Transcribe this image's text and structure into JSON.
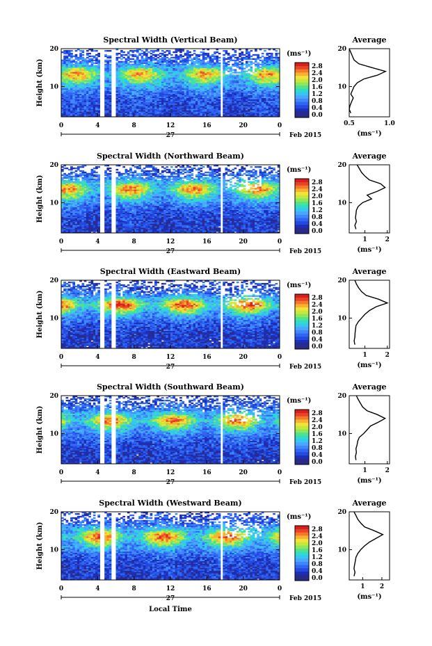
{
  "colormap": [
    "#ffffff",
    "#2a2a8a",
    "#1c2fb8",
    "#2349e0",
    "#2f67f2",
    "#3f86ff",
    "#4aa6ff",
    "#35c6f2",
    "#2fdcc8",
    "#52e28c",
    "#8ee65a",
    "#c6e83c",
    "#f2e23a",
    "#f8b232",
    "#f47a2a",
    "#e84328",
    "#d81e1e"
  ],
  "common": {
    "date_label": "Feb 2015",
    "day_label": "27",
    "time_ticks": [
      "0",
      "4",
      "8",
      "12",
      "16",
      "20",
      "0"
    ],
    "height_label": "Height (km)",
    "height_ticks": [
      "20",
      "10"
    ],
    "unit_label": "(ms⁻¹)",
    "colorbar_ticks": [
      "2.8",
      "2.4",
      "2.0",
      "1.6",
      "1.2",
      "0.8",
      "0.4",
      "0.0"
    ],
    "average_title": "Average",
    "avg_unit_label": "(ms⁻¹)",
    "xaxis_label": "Local Time"
  },
  "chart_data": [
    {
      "type": "heatmap",
      "title": "Spectral Width (Vertical Beam)",
      "x_range_hours": [
        0,
        24
      ],
      "y_range_km": [
        2,
        20
      ],
      "colorbar_range": [
        0.0,
        3.0
      ],
      "gaps_hours": [
        [
          4.3,
          4.7
        ],
        [
          5.4,
          6.0
        ],
        [
          17.4,
          17.7
        ]
      ],
      "profile": [
        0.55,
        0.55,
        0.6,
        0.6,
        0.62,
        0.7,
        0.8,
        0.95,
        1.15,
        1.45,
        1.7,
        2.0,
        2.3,
        1.9,
        1.4,
        1.0,
        0.8,
        0.65,
        0.6,
        0.55
      ],
      "avg_xrange": [
        0.5,
        1.0
      ],
      "avg_xticks": [
        "0.5",
        "1.0"
      ],
      "avg_profile_km": [
        3,
        4,
        5,
        6,
        7,
        8,
        9,
        10,
        11,
        12,
        13,
        14,
        15,
        16,
        17,
        18,
        19,
        20
      ],
      "avg_profile_ms": [
        0.52,
        0.5,
        0.51,
        0.53,
        0.55,
        0.52,
        0.54,
        0.56,
        0.6,
        0.68,
        0.85,
        0.95,
        0.78,
        0.62,
        0.56,
        0.54,
        0.52,
        0.5
      ]
    },
    {
      "type": "heatmap",
      "title": "Spectral Width (Northward Beam)",
      "x_range_hours": [
        0,
        24
      ],
      "y_range_km": [
        2,
        20
      ],
      "colorbar_range": [
        0.0,
        3.0
      ],
      "gaps_hours": [
        [
          4.3,
          4.7
        ],
        [
          5.4,
          6.0
        ],
        [
          17.4,
          17.7
        ]
      ],
      "profile": [
        0.45,
        0.45,
        0.5,
        0.5,
        0.55,
        0.6,
        0.7,
        0.85,
        1.0,
        1.3,
        1.55,
        1.9,
        2.3,
        2.2,
        1.7,
        1.2,
        0.9,
        0.7,
        0.6,
        0.55
      ],
      "avg_xrange": [
        0.3,
        2.1
      ],
      "avg_xticks": [
        "1",
        "2"
      ],
      "avg_profile_km": [
        3,
        4,
        5,
        6,
        7,
        8,
        9,
        10,
        11,
        12,
        13,
        14,
        15,
        16,
        17,
        18,
        19,
        20
      ],
      "avg_profile_ms": [
        0.6,
        0.55,
        0.62,
        0.58,
        0.6,
        0.62,
        0.7,
        0.9,
        1.3,
        1.1,
        1.55,
        1.9,
        1.7,
        1.2,
        1.0,
        0.85,
        0.75,
        0.65
      ]
    },
    {
      "type": "heatmap",
      "title": "Spectral Width (Eastward Beam)",
      "x_range_hours": [
        0,
        24
      ],
      "y_range_km": [
        2,
        20
      ],
      "colorbar_range": [
        0.0,
        3.0
      ],
      "gaps_hours": [
        [
          4.3,
          4.7
        ],
        [
          5.4,
          6.0
        ],
        [
          17.4,
          17.7
        ]
      ],
      "profile": [
        0.4,
        0.45,
        0.45,
        0.5,
        0.5,
        0.55,
        0.65,
        0.75,
        0.95,
        1.25,
        1.6,
        2.1,
        2.6,
        2.3,
        1.6,
        1.1,
        0.8,
        0.65,
        0.55,
        0.5
      ],
      "avg_xrange": [
        0.3,
        2.1
      ],
      "avg_xticks": [
        "1",
        "2"
      ],
      "avg_profile_km": [
        3,
        4,
        5,
        6,
        7,
        8,
        9,
        10,
        11,
        12,
        13,
        14,
        15,
        16,
        17,
        18,
        19,
        20
      ],
      "avg_profile_ms": [
        0.55,
        0.52,
        0.55,
        0.56,
        0.58,
        0.6,
        0.7,
        0.85,
        1.0,
        1.2,
        1.5,
        2.0,
        1.6,
        1.05,
        0.85,
        0.72,
        0.62,
        0.55
      ]
    },
    {
      "type": "heatmap",
      "title": "Spectral Width (Southward Beam)",
      "x_range_hours": [
        0,
        24
      ],
      "y_range_km": [
        2,
        20
      ],
      "colorbar_range": [
        0.0,
        3.0
      ],
      "gaps_hours": [
        [
          4.3,
          4.7
        ],
        [
          5.4,
          6.0
        ],
        [
          17.4,
          17.7
        ]
      ],
      "profile": [
        0.45,
        0.45,
        0.5,
        0.5,
        0.55,
        0.6,
        0.7,
        0.85,
        1.0,
        1.3,
        1.6,
        2.0,
        2.4,
        2.1,
        1.6,
        1.15,
        0.85,
        0.7,
        0.6,
        0.55
      ],
      "avg_xrange": [
        0.3,
        2.1
      ],
      "avg_xticks": [
        "1",
        "2"
      ],
      "avg_profile_km": [
        3,
        4,
        5,
        6,
        7,
        8,
        9,
        10,
        11,
        12,
        13,
        14,
        15,
        16,
        17,
        18,
        19,
        20
      ],
      "avg_profile_ms": [
        0.6,
        0.58,
        0.62,
        0.6,
        0.65,
        0.68,
        0.75,
        0.95,
        1.1,
        1.25,
        1.6,
        1.9,
        1.55,
        1.1,
        0.9,
        0.8,
        0.7,
        0.62
      ]
    },
    {
      "type": "heatmap",
      "title": "Spectral Width (Westward Beam)",
      "x_range_hours": [
        0,
        24
      ],
      "y_range_km": [
        2,
        20
      ],
      "colorbar_range": [
        0.0,
        3.0
      ],
      "gaps_hours": [
        [
          4.3,
          4.7
        ],
        [
          5.4,
          6.0
        ],
        [
          17.4,
          17.7
        ]
      ],
      "profile": [
        0.45,
        0.5,
        0.5,
        0.55,
        0.55,
        0.6,
        0.7,
        0.85,
        1.05,
        1.35,
        1.7,
        2.1,
        2.5,
        2.2,
        1.6,
        1.15,
        0.85,
        0.7,
        0.6,
        0.55
      ],
      "avg_xrange": [
        0.3,
        2.4
      ],
      "avg_xticks": [
        "1",
        "2"
      ],
      "avg_profile_km": [
        3,
        4,
        5,
        6,
        7,
        8,
        9,
        10,
        11,
        12,
        13,
        14,
        15,
        16,
        17,
        18,
        19,
        20
      ],
      "avg_profile_ms": [
        0.55,
        0.6,
        0.55,
        0.58,
        0.62,
        0.65,
        0.75,
        0.9,
        1.1,
        1.35,
        1.7,
        2.05,
        1.6,
        1.1,
        0.9,
        0.75,
        0.65,
        0.55
      ]
    }
  ]
}
